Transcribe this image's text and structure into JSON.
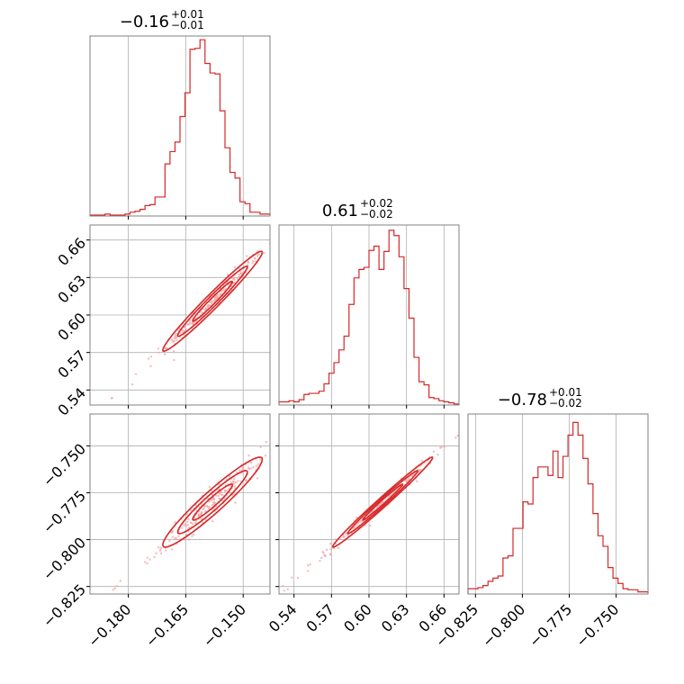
{
  "colors": {
    "series": "#d62728",
    "scatter": "#f4a6a7",
    "grid": "#b0b0b0",
    "frame": "#808080"
  },
  "chart_data": {
    "type": "corner",
    "title": "",
    "params": [
      {
        "range": [
          -0.19,
          -0.143
        ],
        "ticks": [
          -0.18,
          -0.165,
          -0.15
        ],
        "tick_labels": [
          "−0.180",
          "−0.165",
          "−0.150"
        ],
        "summary": {
          "median": "−0.16",
          "upper": "+0.01",
          "lower": "−0.01"
        }
      },
      {
        "range": [
          0.528,
          0.672
        ],
        "ticks": [
          0.54,
          0.57,
          0.6,
          0.63,
          0.66
        ],
        "tick_labels": [
          "0.54",
          "0.57",
          "0.60",
          "0.63",
          "0.66"
        ],
        "summary": {
          "median": "0.61",
          "upper": "+0.02",
          "lower": "−0.02"
        }
      },
      {
        "range": [
          -0.829,
          -0.733
        ],
        "ticks": [
          -0.825,
          -0.8,
          -0.775,
          -0.75
        ],
        "tick_labels": [
          "−0.825",
          "−0.800",
          "−0.775",
          "−0.750"
        ],
        "summary": {
          "median": "−0.78",
          "upper": "+0.01",
          "lower": "−0.02"
        }
      }
    ],
    "hist_counts": [
      [
        1,
        1,
        1,
        2,
        1,
        1,
        1,
        2,
        4,
        5,
        7,
        11,
        12,
        20,
        20,
        55,
        68,
        78,
        105,
        130,
        176,
        177,
        186,
        161,
        151,
        150,
        111,
        72,
        46,
        40,
        15,
        13,
        4,
        4,
        2,
        2
      ],
      [
        3,
        3,
        4,
        3,
        5,
        10,
        11,
        11,
        13,
        20,
        30,
        40,
        52,
        65,
        95,
        120,
        128,
        130,
        146,
        150,
        128,
        145,
        165,
        160,
        140,
        110,
        82,
        45,
        22,
        19,
        7,
        6,
        4,
        3,
        2,
        1
      ],
      [
        5,
        5,
        6,
        8,
        12,
        15,
        17,
        34,
        36,
        62,
        62,
        87,
        85,
        110,
        120,
        120,
        112,
        135,
        110,
        130,
        150,
        162,
        150,
        128,
        104,
        76,
        55,
        45,
        25,
        15,
        10,
        5,
        4,
        4,
        2,
        2
      ]
    ],
    "hist_y_max": [
      190,
      170,
      170
    ],
    "correlation": {
      "p0_p1": 0.98,
      "p0_p2": 0.95,
      "p1_p2": 0.99
    },
    "grid": true
  }
}
